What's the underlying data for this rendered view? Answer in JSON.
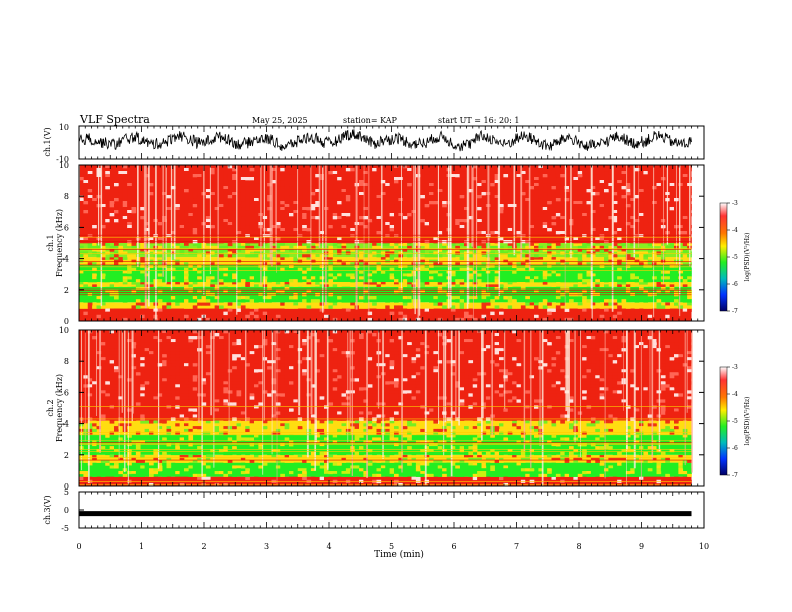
{
  "header": {
    "title": "VLF Spectra",
    "date": "May 25, 2025",
    "station": "station= KAP",
    "start": "start  UT  =   16: 20: 1"
  },
  "colors": {
    "spectrogram_red": "#ee2211",
    "spectrogram_green": "#22ee22",
    "spectrogram_yellow": "#ffee22",
    "trace": "#000000"
  },
  "chart_data": [
    {
      "type": "line",
      "panel": "ch1-waveform",
      "ylabel": "ch.1(V)",
      "ylim": [
        -10,
        10
      ],
      "yticks": [
        "10",
        "-10"
      ],
      "xlim": [
        0,
        9.8
      ],
      "description_of_series": "noisy voltage trace, amplitude roughly -5 to 6 V"
    },
    {
      "type": "heatmap",
      "panel": "ch1-spectrogram",
      "ylabel": "ch.1 Frequency (kHz)",
      "ylim": [
        0,
        10
      ],
      "yticks": [
        "0",
        "2",
        "4",
        "6",
        "8",
        "10"
      ],
      "xlim": [
        0,
        9.8
      ],
      "bands": [
        {
          "from": 0,
          "to": 0.8,
          "level": "red"
        },
        {
          "from": 0.8,
          "to": 1.2,
          "level": "yellow"
        },
        {
          "from": 1.2,
          "to": 2.2,
          "level": "green"
        },
        {
          "from": 2.2,
          "to": 2.5,
          "level": "yellow"
        },
        {
          "from": 2.5,
          "to": 3.6,
          "level": "green"
        },
        {
          "from": 3.6,
          "to": 4.1,
          "level": "yellow"
        },
        {
          "from": 4.1,
          "to": 5.0,
          "level": "green-yellow"
        },
        {
          "from": 5.0,
          "to": 10,
          "level": "red"
        }
      ],
      "colorbar": {
        "label": "log(PSD)(V²/Hz)",
        "ticks": [
          "-3",
          "-4",
          "-5",
          "-6",
          "-7"
        ]
      }
    },
    {
      "type": "heatmap",
      "panel": "ch2-spectrogram",
      "ylabel": "ch.2 Frequency (kHz)",
      "ylim": [
        0,
        10
      ],
      "yticks": [
        "0",
        "2",
        "4",
        "6",
        "8",
        "10"
      ],
      "xlim": [
        0,
        9.8
      ],
      "bands": [
        {
          "from": 0,
          "to": 0.6,
          "level": "red"
        },
        {
          "from": 0.6,
          "to": 1.5,
          "level": "green"
        },
        {
          "from": 1.5,
          "to": 2.0,
          "level": "yellow"
        },
        {
          "from": 2.0,
          "to": 3.3,
          "level": "green"
        },
        {
          "from": 3.3,
          "to": 4.2,
          "level": "yellow"
        },
        {
          "from": 4.2,
          "to": 10,
          "level": "red"
        }
      ],
      "colorbar": {
        "label": "log(PSD)(V²/Hz)",
        "ticks": [
          "-3",
          "-4",
          "-5",
          "-6",
          "-7"
        ]
      }
    },
    {
      "type": "line",
      "panel": "ch3-waveform",
      "ylabel": "ch.3(V)",
      "ylim": [
        -5,
        5
      ],
      "yticks": [
        "5",
        "0",
        "-5"
      ],
      "xlim": [
        0,
        9.8
      ],
      "level": -1
    }
  ],
  "xaxis": {
    "label": "Time  (min)",
    "ticks": [
      "0",
      "1",
      "2",
      "3",
      "4",
      "5",
      "6",
      "7",
      "8",
      "9",
      "10"
    ],
    "xlim": [
      0,
      10
    ]
  }
}
